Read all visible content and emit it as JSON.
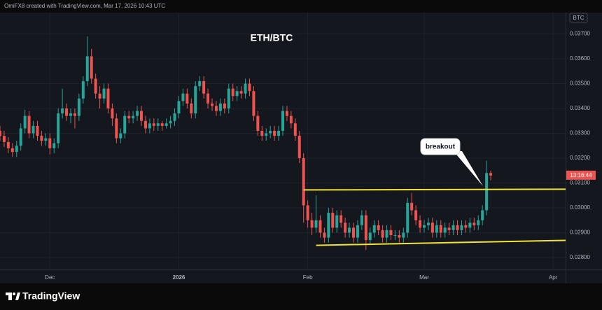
{
  "header": "OmiFX8 created with TradingView.com, Mar 17, 2026 10:43 UTC",
  "footer": "TradingView",
  "chart_data": {
    "type": "candlestick",
    "title": "ETH/BTC",
    "currency": "BTC",
    "countdown": "13:16:44",
    "annotation": "breakout",
    "up_color": "#26a69a",
    "down_color": "#ef5350",
    "grid": true,
    "categories": [
      null,
      null,
      null,
      null,
      null,
      null,
      null,
      null,
      null,
      null,
      null,
      null,
      null,
      null,
      null,
      null,
      null,
      null,
      null,
      null,
      null,
      null,
      null,
      null,
      null,
      null,
      null,
      null,
      null,
      null,
      null,
      null,
      null,
      null,
      null,
      null,
      null,
      null,
      null,
      null,
      null,
      null,
      null,
      null,
      null,
      null,
      null,
      null,
      null,
      null,
      null,
      null,
      null,
      null,
      null,
      null,
      null,
      null,
      null,
      null,
      null,
      null,
      null,
      null,
      null,
      null,
      null,
      null,
      null,
      null,
      null,
      null,
      null,
      null,
      null,
      null,
      null,
      null,
      null,
      null,
      null,
      null,
      null,
      null,
      null,
      null,
      null,
      null,
      null,
      null,
      null,
      null,
      null,
      null,
      null,
      null,
      null,
      null,
      null,
      null,
      null,
      null,
      null,
      null,
      null,
      null,
      null,
      null,
      null,
      null,
      null,
      null,
      null,
      null,
      null,
      null,
      null,
      null,
      null
    ],
    "open": [
      0.0331,
      0.0329,
      0.03265,
      0.0324,
      0.03225,
      0.0325,
      0.0332,
      0.0337,
      0.033,
      0.0333,
      0.0329,
      0.0327,
      0.0328,
      0.0324,
      0.0326,
      0.0338,
      0.034,
      0.0337,
      0.0338,
      0.0337,
      0.0344,
      0.0351,
      0.0361,
      0.0352,
      0.0346,
      0.0344,
      0.0348,
      0.034,
      0.0336,
      0.0328,
      0.033,
      0.0337,
      0.0336,
      0.0337,
      0.0339,
      0.0335,
      0.0332,
      0.0334,
      0.0333,
      0.0334,
      0.0333,
      0.0334,
      0.0335,
      0.0338,
      0.0343,
      0.0346,
      0.0342,
      0.0338,
      0.0349,
      0.0351,
      0.0346,
      0.0342,
      0.0341,
      0.0339,
      0.0342,
      0.034,
      0.0348,
      0.0345,
      0.0347,
      0.0346,
      0.035,
      0.0347,
      0.0337,
      0.0331,
      0.0329,
      0.033,
      0.0331,
      0.0329,
      0.0331,
      0.0339,
      0.0337,
      0.0334,
      0.0329,
      0.032,
      0.0301,
      0.0295,
      0.0292,
      0.0295,
      0.029,
      0.0288,
      0.0298,
      0.0292,
      0.0297,
      0.0294,
      0.029,
      0.0292,
      0.0288,
      0.0293,
      0.0297,
      0.0287,
      0.029,
      0.0293,
      0.0291,
      0.0288,
      0.0291,
      0.0289,
      0.0289,
      0.0288,
      0.029,
      0.0302,
      0.0299,
      0.0295,
      0.0292,
      0.0293,
      0.0294,
      0.029,
      0.0293,
      0.029,
      0.0292,
      0.0291,
      0.0293,
      0.0291,
      0.0293,
      0.0292,
      0.0294,
      0.0293,
      0.0295,
      0.0299,
      0.0314
    ],
    "high": [
      0.0333,
      0.0331,
      0.03285,
      0.0326,
      0.0327,
      0.0334,
      0.03395,
      0.0339,
      0.0335,
      0.0335,
      0.0331,
      0.033,
      0.033,
      0.0328,
      0.034,
      0.0348,
      0.0342,
      0.034,
      0.034,
      0.0346,
      0.0353,
      0.0369,
      0.0364,
      0.0354,
      0.0349,
      0.035,
      0.035,
      0.0342,
      0.0338,
      0.0332,
      0.0339,
      0.0339,
      0.0339,
      0.0341,
      0.0341,
      0.0337,
      0.0336,
      0.0336,
      0.0336,
      0.0335,
      0.0336,
      0.0337,
      0.034,
      0.0345,
      0.0348,
      0.0348,
      0.0344,
      0.0351,
      0.0353,
      0.0353,
      0.0348,
      0.0344,
      0.0343,
      0.0344,
      0.0344,
      0.035,
      0.035,
      0.0349,
      0.0349,
      0.0352,
      0.0352,
      0.0349,
      0.0339,
      0.0333,
      0.0332,
      0.0333,
      0.0333,
      0.0333,
      0.0341,
      0.0341,
      0.0339,
      0.0336,
      0.0331,
      0.0322,
      0.0303,
      0.0298,
      0.0305,
      0.0297,
      0.0292,
      0.03,
      0.03,
      0.0299,
      0.0299,
      0.0296,
      0.0294,
      0.0294,
      0.0295,
      0.0299,
      0.0299,
      0.0292,
      0.0295,
      0.0295,
      0.0293,
      0.0293,
      0.0293,
      0.0291,
      0.0291,
      0.0292,
      0.0304,
      0.0306,
      0.0301,
      0.0297,
      0.0295,
      0.0296,
      0.0296,
      0.0295,
      0.0295,
      0.0294,
      0.0294,
      0.0295,
      0.0295,
      0.0295,
      0.0295,
      0.0296,
      0.0296,
      0.0297,
      0.0301,
      0.0319,
      0.0315
    ],
    "low": [
      0.0327,
      0.03245,
      0.0322,
      0.03205,
      0.03205,
      0.0323,
      0.033,
      0.0328,
      0.0328,
      0.0327,
      0.0325,
      0.0325,
      0.03215,
      0.0322,
      0.0324,
      0.0336,
      0.0335,
      0.0334,
      0.0332,
      0.0335,
      0.0342,
      0.0349,
      0.035,
      0.0344,
      0.034,
      0.0342,
      0.0338,
      0.0333,
      0.0326,
      0.0326,
      0.0328,
      0.0334,
      0.0334,
      0.0335,
      0.0333,
      0.033,
      0.033,
      0.0331,
      0.0331,
      0.0331,
      0.0332,
      0.0332,
      0.0333,
      0.0336,
      0.0341,
      0.034,
      0.0336,
      0.0336,
      0.0347,
      0.0344,
      0.034,
      0.0339,
      0.0337,
      0.0337,
      0.0338,
      0.0338,
      0.0343,
      0.0343,
      0.0344,
      0.0344,
      0.0345,
      0.0335,
      0.0329,
      0.0327,
      0.0327,
      0.0328,
      0.0327,
      0.0327,
      0.0329,
      0.0335,
      0.0332,
      0.0327,
      0.0318,
      0.0294,
      0.0292,
      0.0289,
      0.029,
      0.0288,
      0.0286,
      0.0286,
      0.029,
      0.029,
      0.0292,
      0.0288,
      0.0288,
      0.0286,
      0.0286,
      0.0291,
      0.0283,
      0.0285,
      0.0288,
      0.0289,
      0.0286,
      0.0286,
      0.0287,
      0.0287,
      0.0286,
      0.0286,
      0.0288,
      0.0297,
      0.0293,
      0.029,
      0.029,
      0.0291,
      0.0288,
      0.0288,
      0.0288,
      0.0288,
      0.0289,
      0.0289,
      0.0289,
      0.0289,
      0.029,
      0.029,
      0.0291,
      0.0291,
      0.0293,
      0.0297,
      0.0311
    ],
    "close": [
      0.0329,
      0.03265,
      0.0324,
      0.03225,
      0.0325,
      0.0332,
      0.0337,
      0.033,
      0.0333,
      0.0329,
      0.0327,
      0.0328,
      0.0324,
      0.0326,
      0.0338,
      0.034,
      0.0337,
      0.0338,
      0.0337,
      0.0344,
      0.0351,
      0.0361,
      0.0352,
      0.0346,
      0.0344,
      0.0348,
      0.034,
      0.0336,
      0.0328,
      0.033,
      0.0337,
      0.0336,
      0.0337,
      0.0339,
      0.0335,
      0.0332,
      0.0334,
      0.0333,
      0.0334,
      0.0333,
      0.0334,
      0.0335,
      0.0338,
      0.0343,
      0.0346,
      0.0342,
      0.0338,
      0.0349,
      0.0351,
      0.0346,
      0.0342,
      0.0341,
      0.0339,
      0.0342,
      0.034,
      0.0348,
      0.0345,
      0.0347,
      0.0346,
      0.035,
      0.0347,
      0.0337,
      0.0331,
      0.0329,
      0.033,
      0.0331,
      0.0329,
      0.0331,
      0.0339,
      0.0337,
      0.0334,
      0.0329,
      0.032,
      0.0301,
      0.0295,
      0.0292,
      0.0295,
      0.029,
      0.0288,
      0.0298,
      0.0292,
      0.0297,
      0.0294,
      0.029,
      0.0292,
      0.0288,
      0.0293,
      0.0297,
      0.0287,
      0.029,
      0.0293,
      0.0291,
      0.0288,
      0.0291,
      0.0289,
      0.0289,
      0.0288,
      0.029,
      0.0302,
      0.0299,
      0.0295,
      0.0292,
      0.0293,
      0.0294,
      0.029,
      0.0293,
      0.029,
      0.0292,
      0.0291,
      0.0293,
      0.0291,
      0.0293,
      0.0292,
      0.0294,
      0.0293,
      0.0295,
      0.0299,
      0.0314,
      0.0313
    ],
    "xlim": [
      0,
      136
    ],
    "xticks": [
      {
        "value": 12,
        "label": "Dec"
      },
      {
        "value": 43,
        "label": "2026"
      },
      {
        "value": 74,
        "label": "Feb"
      },
      {
        "value": 102,
        "label": "Mar"
      },
      {
        "value": 133,
        "label": "Apr"
      }
    ],
    "ylim": [
      0.02752,
      0.03786
    ],
    "yticks": [
      {
        "value": 0.028,
        "label": "0.02800"
      },
      {
        "value": 0.029,
        "label": "0.02900"
      },
      {
        "value": 0.03,
        "label": "0.03000"
      },
      {
        "value": 0.031,
        "label": "0.03100"
      },
      {
        "value": 0.032,
        "label": "0.03200"
      },
      {
        "value": 0.033,
        "label": "0.03300"
      },
      {
        "value": 0.034,
        "label": "0.03400"
      },
      {
        "value": 0.035,
        "label": "0.03500"
      },
      {
        "value": 0.036,
        "label": "0.03600"
      },
      {
        "value": 0.037,
        "label": "0.03700"
      }
    ],
    "trendlines": [
      {
        "color": "#f2e33a",
        "x": [
          73,
          136
        ],
        "y": [
          0.03072,
          0.03075
        ]
      },
      {
        "color": "#f2e33a",
        "x": [
          76,
          136
        ],
        "y": [
          0.02849,
          0.02869
        ]
      }
    ]
  }
}
